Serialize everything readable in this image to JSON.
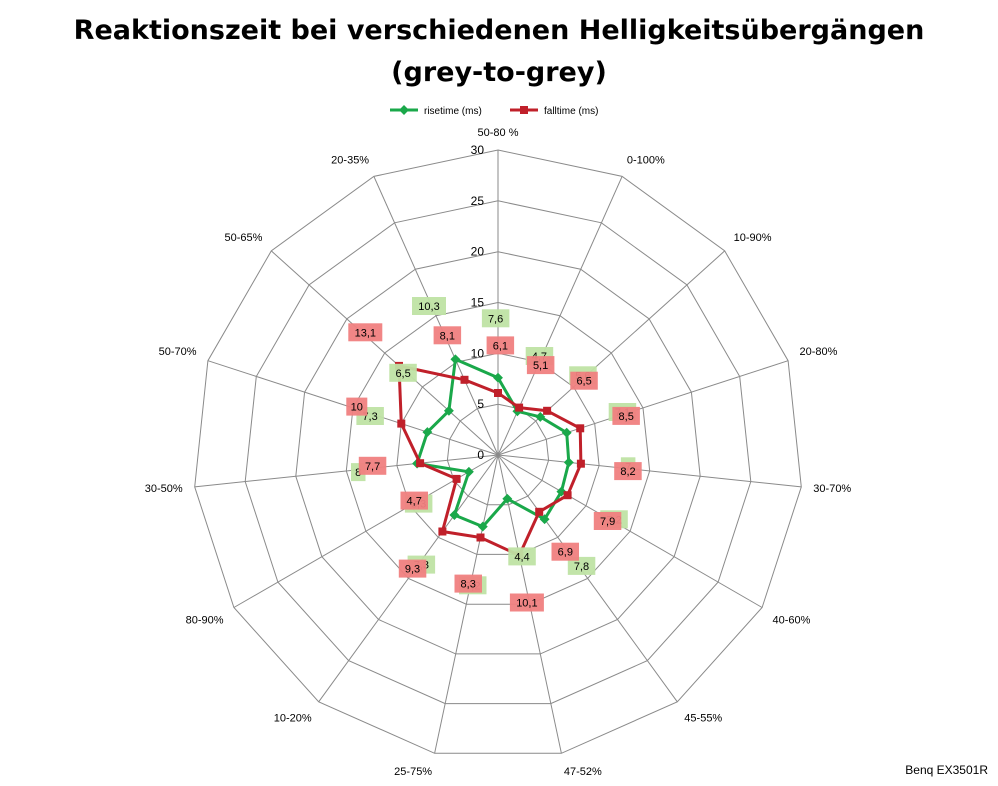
{
  "chart_data": {
    "type": "radar",
    "title": "Reaktionszeit bei verschiedenen Helligkeitsübergängen",
    "subtitle": "(grey-to-grey)",
    "categories": [
      "50-80 %",
      "0-100%",
      "10-90%",
      "20-80%",
      "30-70%",
      "40-60%",
      "45-55%",
      "47-52%",
      "25-75%",
      "10-20%",
      "80-90%",
      "30-50%",
      "50-70%",
      "50-65%",
      "20-35%"
    ],
    "series": [
      {
        "name": "risetime (ms)",
        "color": "#1aa84a",
        "label_bg": "#bfe3a4",
        "values": [
          7.6,
          4.7,
          5.6,
          7.1,
          7.0,
          7.2,
          7.8,
          4.4,
          7.2,
          7.3,
          3.3,
          8.0,
          7.3,
          6.5,
          10.3
        ],
        "labels": [
          "7,6",
          "4,7",
          "5,6",
          "7,1",
          "7",
          "7,2",
          "7,8",
          "4,4",
          "7,2",
          "7,3",
          "3,3",
          "8",
          "7,3",
          "6,5",
          "10,3"
        ]
      },
      {
        "name": "falltime (ms)",
        "color": "#c0202a",
        "label_bg": "#f08080",
        "values": [
          6.1,
          5.1,
          6.5,
          8.5,
          8.2,
          7.9,
          6.9,
          10.1,
          8.3,
          9.3,
          4.7,
          7.7,
          10.0,
          13.1,
          8.1
        ],
        "labels": [
          "6,1",
          "5,1",
          "6,5",
          "8,5",
          "8,2",
          "7,9",
          "6,9",
          "10,1",
          "8,3",
          "9,3",
          "4,7",
          "7,7",
          "10",
          "13,1",
          "8,1"
        ]
      }
    ],
    "r_ticks": [
      0,
      5,
      10,
      15,
      20,
      25,
      30
    ],
    "r_max": 30,
    "legend_position": "top",
    "grid": true
  },
  "source_label": "Benq EX3501R"
}
